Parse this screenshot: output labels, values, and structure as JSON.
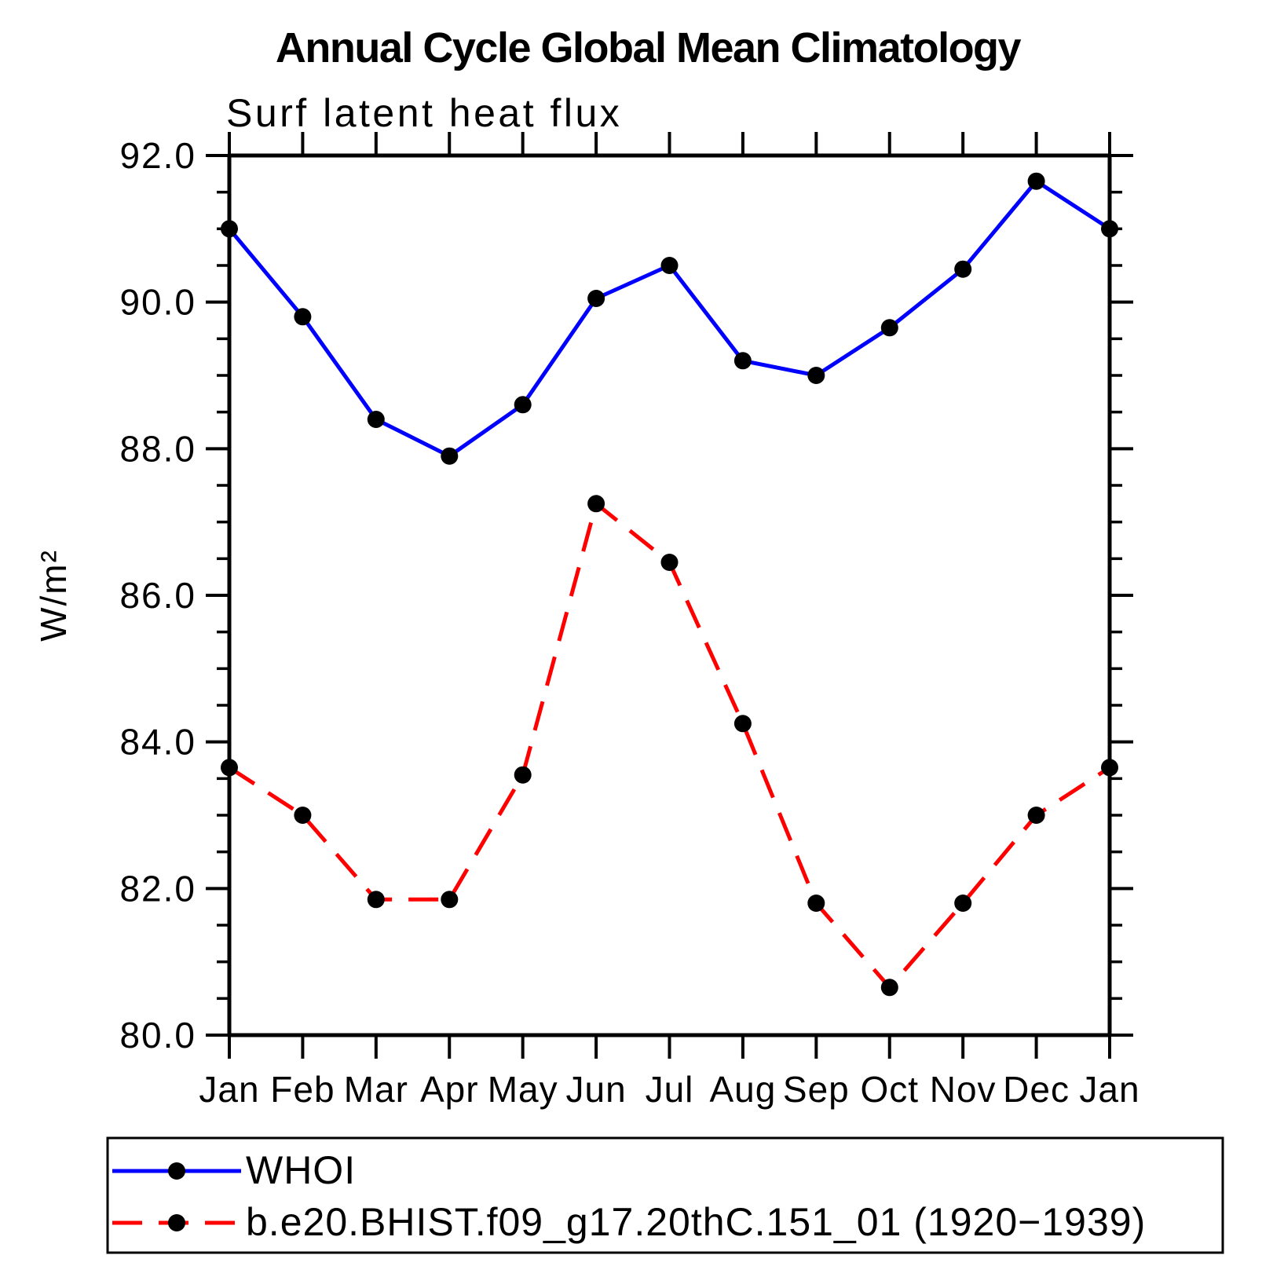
{
  "title": "Annual Cycle Global Mean Climatology",
  "subtitle": "Surf latent heat flux",
  "ylabel": "W/m²",
  "legend": [
    {
      "label": "WHOI",
      "color": "#0000ff",
      "style": "solid",
      "marker_color": "#000000"
    },
    {
      "label": "b.e20.BHIST.f09_g17.20thC.151_01 (1920−1939)",
      "color": "#ff0000",
      "style": "dashed",
      "marker_color": "#000000"
    }
  ],
  "chart_data": {
    "type": "line",
    "title": "Annual Cycle Global Mean Climatology",
    "subtitle": "Surf latent heat flux",
    "xlabel": "",
    "ylabel": "W/m²",
    "categories": [
      "Jan",
      "Feb",
      "Mar",
      "Apr",
      "May",
      "Jun",
      "Jul",
      "Aug",
      "Sep",
      "Oct",
      "Nov",
      "Dec",
      "Jan"
    ],
    "series": [
      {
        "name": "WHOI",
        "color": "#0000ff",
        "line_style": "solid",
        "marker": "circle",
        "marker_color": "#000000",
        "values": [
          91.0,
          89.8,
          88.4,
          87.9,
          88.6,
          90.05,
          90.5,
          89.2,
          89.0,
          89.65,
          90.45,
          91.65,
          91.0
        ]
      },
      {
        "name": "b.e20.BHIST.f09_g17.20thC.151_01 (1920−1939)",
        "color": "#ff0000",
        "line_style": "dashed",
        "marker": "circle",
        "marker_color": "#000000",
        "values": [
          83.65,
          83.0,
          81.85,
          81.85,
          83.55,
          87.25,
          86.45,
          84.25,
          81.8,
          80.65,
          81.8,
          83.0,
          83.65
        ]
      }
    ],
    "ylim": [
      80.0,
      92.0
    ],
    "y_major_step": 2.0,
    "y_minor_step": 0.5,
    "y_tick_labels": [
      "92.0",
      "90.0",
      "88.0",
      "86.0",
      "84.0",
      "82.0",
      "80.0"
    ],
    "grid": false,
    "tick_direction": "out",
    "legend_position": "bottom-left"
  }
}
